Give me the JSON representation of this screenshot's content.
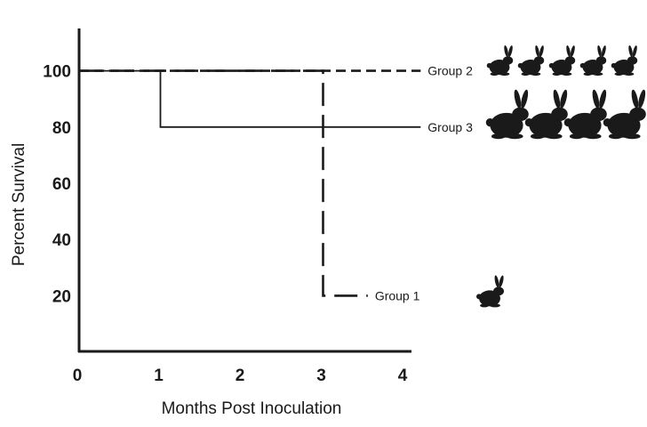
{
  "chart_data": {
    "type": "line",
    "title": "",
    "xlabel": "Months Post Inoculation",
    "ylabel": "Percent Survival",
    "xlim": [
      0,
      4
    ],
    "ylim": [
      0,
      115
    ],
    "x_ticks": [
      "0",
      "1",
      "2",
      "3",
      "4"
    ],
    "y_ticks": [
      "20",
      "40",
      "60",
      "80",
      "100"
    ],
    "grid": false,
    "step": true,
    "series": [
      {
        "name": "Group 2",
        "style": "short-dash",
        "x": [
          0,
          4.2
        ],
        "y": [
          100,
          100
        ],
        "rabbits": 5
      },
      {
        "name": "Group 3",
        "style": "solid",
        "x": [
          0,
          1,
          1,
          4.2
        ],
        "y": [
          100,
          100,
          80,
          80
        ],
        "rabbits": 4
      },
      {
        "name": "Group 1",
        "style": "long-dash",
        "x": [
          0,
          3,
          3,
          3.55
        ],
        "y": [
          100,
          100,
          20,
          20
        ],
        "rabbits": 1
      }
    ],
    "colors": {
      "line": "#1a1a1a",
      "rabbit": "#1a1a1a"
    }
  }
}
